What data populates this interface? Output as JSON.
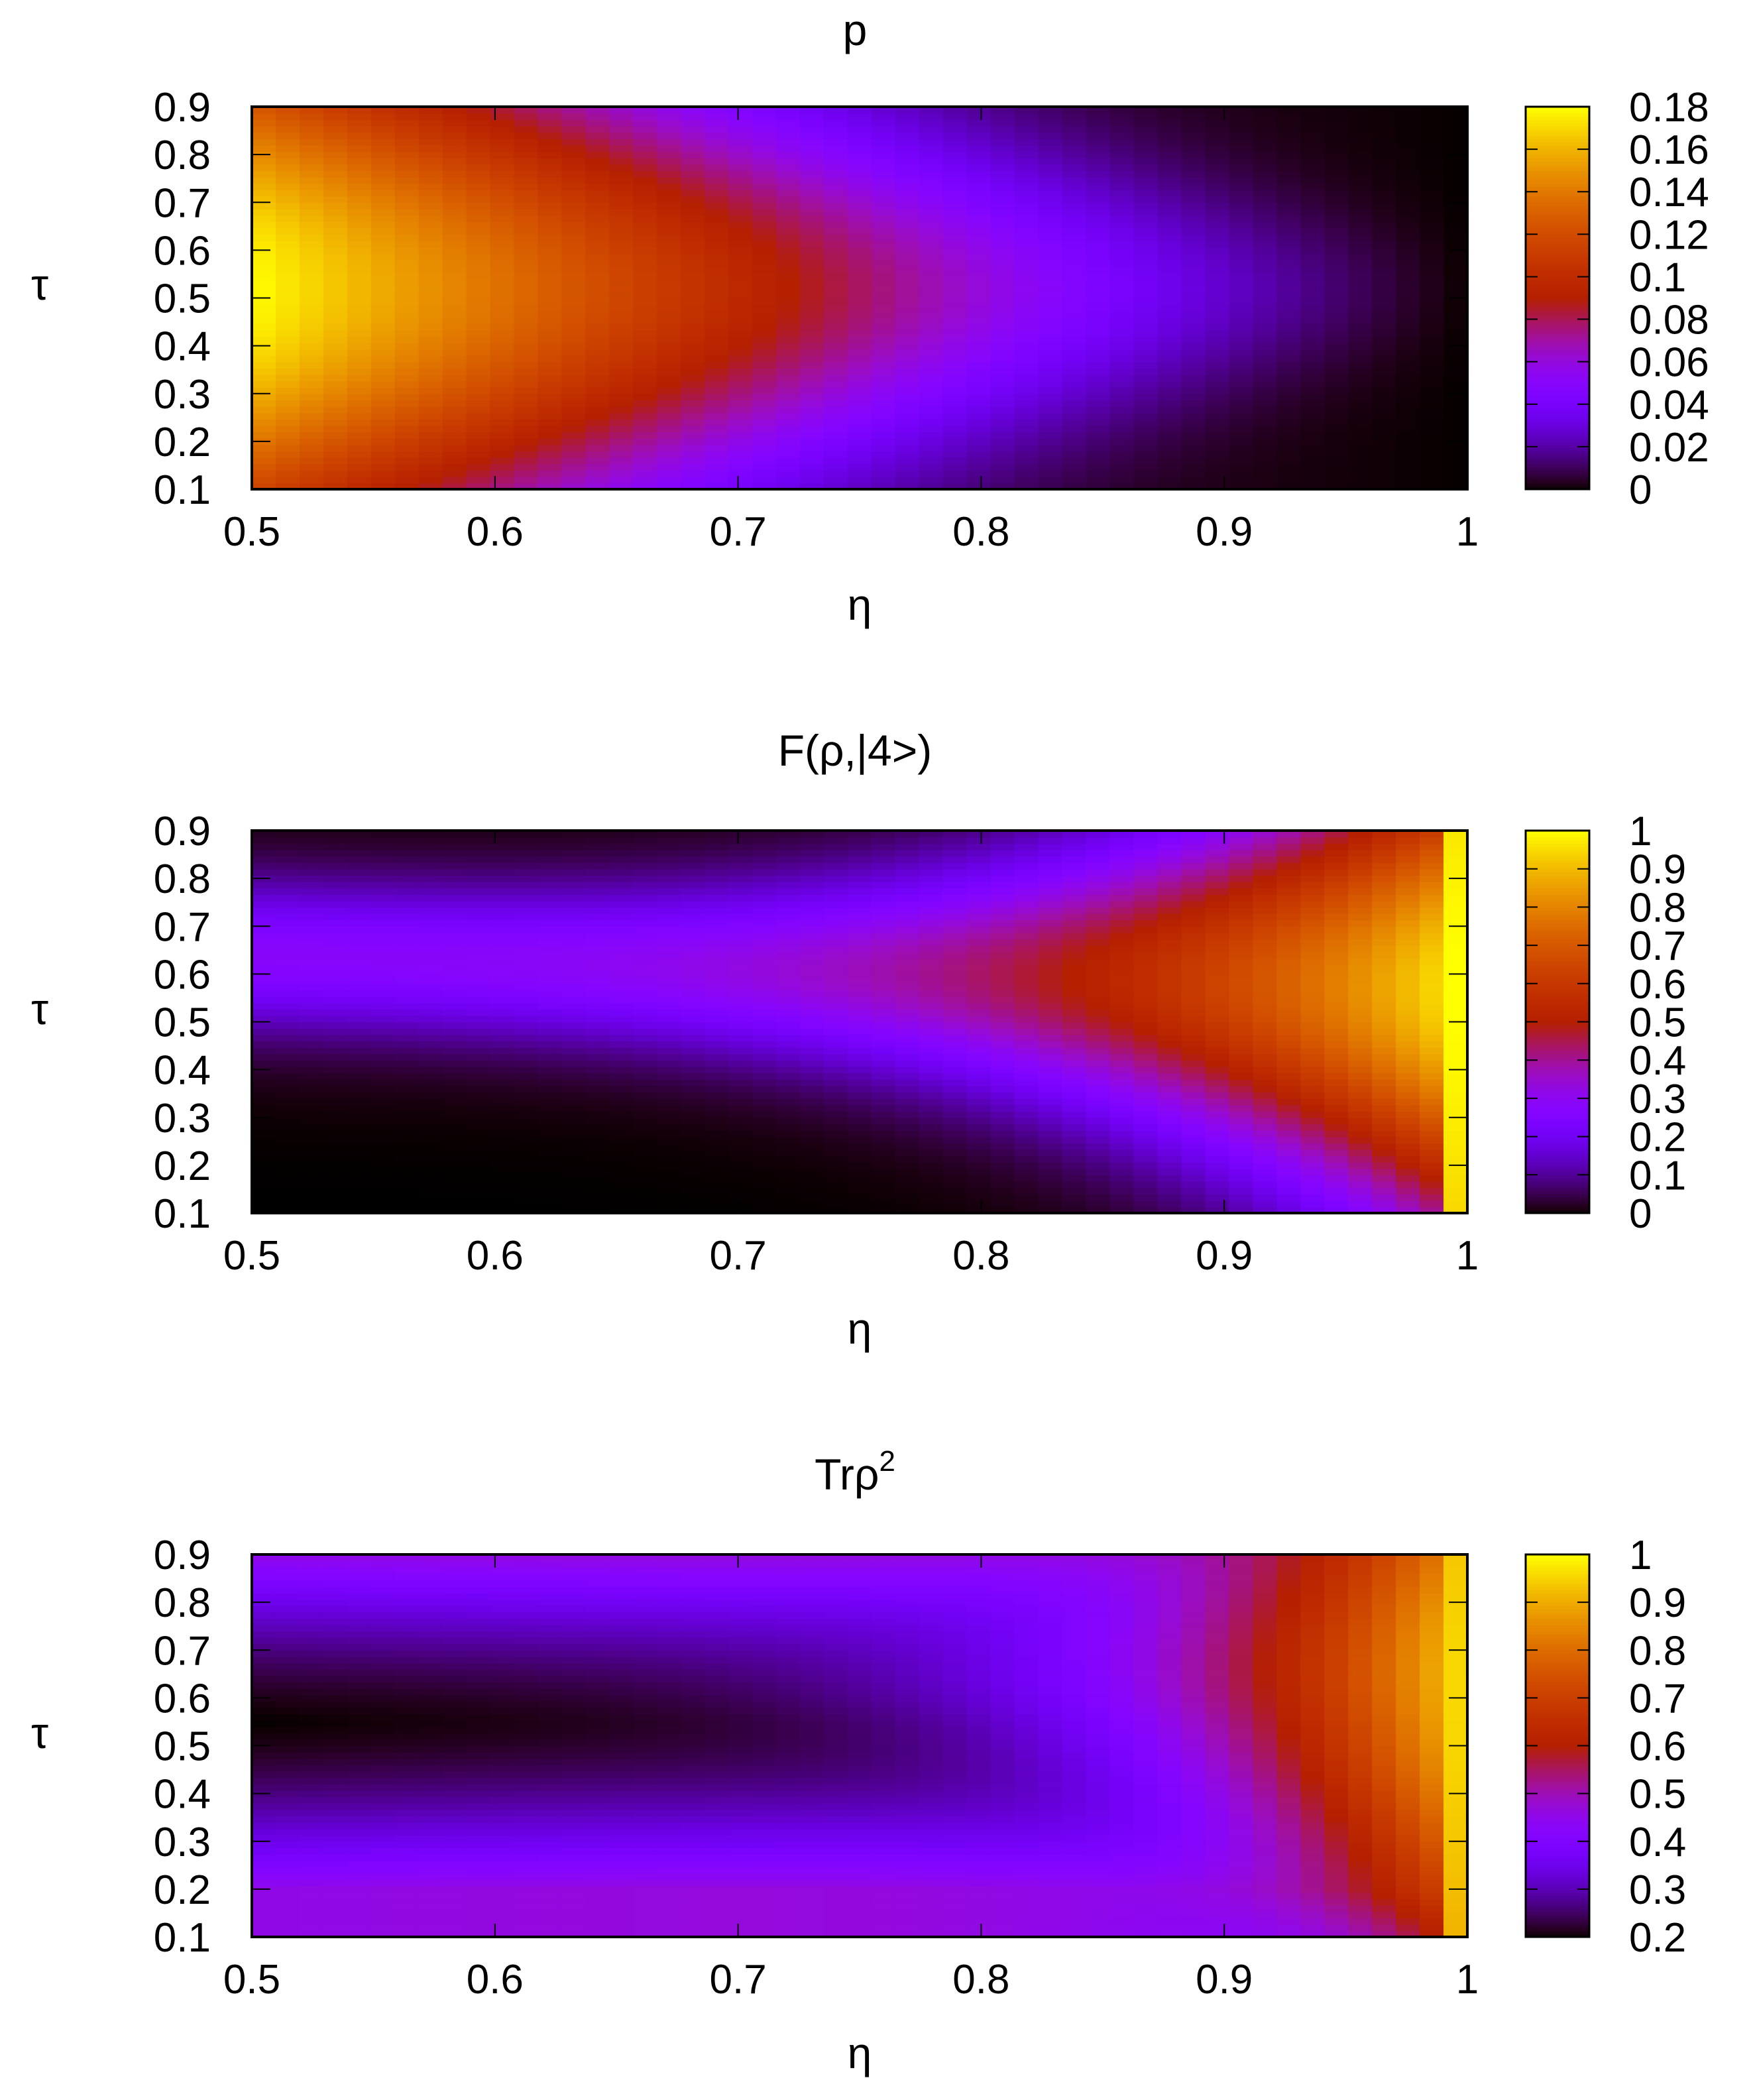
{
  "figure": {
    "xlabel": "η",
    "ylabel": "τ"
  },
  "chart_data": [
    {
      "type": "heatmap",
      "id": "p",
      "title": "p",
      "title_sup": "",
      "xlabel": "η",
      "ylabel": "τ",
      "xlim": [
        0.5,
        1.0
      ],
      "ylim": [
        0.1,
        0.9
      ],
      "x_ticks": [
        "0.5",
        "0.6",
        "0.7",
        "0.8",
        "0.9",
        "1"
      ],
      "y_ticks": [
        "0.1",
        "0.2",
        "0.3",
        "0.4",
        "0.5",
        "0.6",
        "0.7",
        "0.8",
        "0.9"
      ],
      "colorbar": {
        "range": [
          0,
          0.18
        ],
        "ticks": [
          "0",
          "0.02",
          "0.04",
          "0.06",
          "0.08",
          "0.1",
          "0.12",
          "0.14",
          "0.16",
          "0.18"
        ],
        "palette": "black-blue-red-yellow"
      },
      "description_points": {
        "left_edge_center_value": 0.17,
        "right_edge_value": 0.01
      }
    },
    {
      "type": "heatmap",
      "id": "fidelity",
      "title": "F(ρ,|4>)",
      "title_sup": "",
      "xlabel": "η",
      "ylabel": "τ",
      "xlim": [
        0.5,
        1.0
      ],
      "ylim": [
        0.1,
        0.9
      ],
      "x_ticks": [
        "0.5",
        "0.6",
        "0.7",
        "0.8",
        "0.9",
        "1"
      ],
      "y_ticks": [
        "0.1",
        "0.2",
        "0.3",
        "0.4",
        "0.5",
        "0.6",
        "0.7",
        "0.8",
        "0.9"
      ],
      "colorbar": {
        "range": [
          0,
          1
        ],
        "ticks": [
          "0",
          "0.1",
          "0.2",
          "0.3",
          "0.4",
          "0.5",
          "0.6",
          "0.7",
          "0.8",
          "0.9",
          "1"
        ],
        "palette": "black-blue-red-yellow"
      },
      "description_points": {
        "right_edge_value": 1.0,
        "left_edge_center_value": 0.3
      }
    },
    {
      "type": "heatmap",
      "id": "purity",
      "title": "Trρ",
      "title_sup": "2",
      "xlabel": "η",
      "ylabel": "τ",
      "xlim": [
        0.5,
        1.0
      ],
      "ylim": [
        0.1,
        0.9
      ],
      "x_ticks": [
        "0.5",
        "0.6",
        "0.7",
        "0.8",
        "0.9",
        "1"
      ],
      "y_ticks": [
        "0.1",
        "0.2",
        "0.3",
        "0.4",
        "0.5",
        "0.6",
        "0.7",
        "0.8",
        "0.9"
      ],
      "colorbar": {
        "range": [
          0.2,
          1
        ],
        "ticks": [
          "0.2",
          "0.3",
          "0.4",
          "0.5",
          "0.6",
          "0.7",
          "0.8",
          "0.9",
          "1"
        ],
        "palette": "black-blue-red-yellow"
      },
      "description_points": {
        "right_edge_value": 1.0,
        "left_edge_center_value": 0.2
      }
    }
  ]
}
